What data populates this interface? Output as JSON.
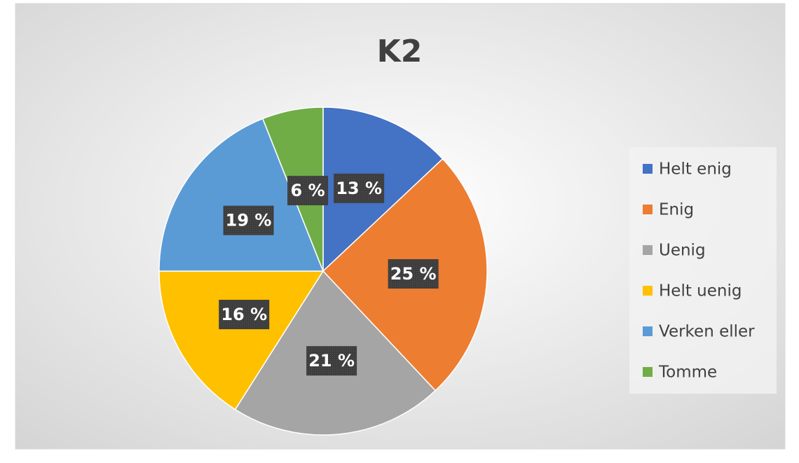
{
  "chart_data": {
    "type": "pie",
    "title": "K2",
    "categories": [
      "Helt enig",
      "Enig",
      "Uenig",
      "Helt uenig",
      "Verken eller",
      "Tomme"
    ],
    "values": [
      13,
      25,
      21,
      16,
      19,
      6
    ],
    "value_labels": [
      "13 %",
      "25 %",
      "21 %",
      "16 %",
      "19 %",
      "6 %"
    ],
    "colors": [
      "#4472c4",
      "#ed7d31",
      "#a5a5a5",
      "#ffc000",
      "#5b9bd5",
      "#70ad47"
    ],
    "legend": "right"
  }
}
